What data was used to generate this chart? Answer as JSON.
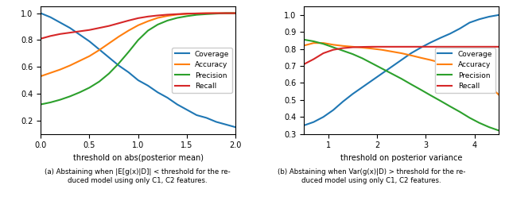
{
  "left": {
    "xlabel": "threshold on abs(posterior mean)",
    "xlim": [
      0.0,
      2.0
    ],
    "xticks": [
      0.0,
      0.5,
      1.0,
      1.5,
      2.0
    ],
    "ylim": [
      0.1,
      1.05
    ],
    "coverage": {
      "x": [
        0.0,
        0.1,
        0.2,
        0.3,
        0.4,
        0.5,
        0.6,
        0.7,
        0.8,
        0.9,
        1.0,
        1.1,
        1.2,
        1.3,
        1.4,
        1.5,
        1.6,
        1.7,
        1.8,
        1.9,
        2.0
      ],
      "y": [
        1.0,
        0.97,
        0.93,
        0.89,
        0.84,
        0.79,
        0.73,
        0.67,
        0.61,
        0.56,
        0.5,
        0.46,
        0.41,
        0.37,
        0.32,
        0.28,
        0.24,
        0.22,
        0.19,
        0.17,
        0.15
      ],
      "color": "#1f77b4",
      "label": "Coverage"
    },
    "accuracy": {
      "x": [
        0.0,
        0.1,
        0.2,
        0.3,
        0.4,
        0.5,
        0.6,
        0.7,
        0.8,
        0.9,
        1.0,
        1.1,
        1.2,
        1.3,
        1.4,
        1.5,
        1.6,
        1.7,
        1.8,
        1.9,
        2.0
      ],
      "y": [
        0.53,
        0.555,
        0.58,
        0.61,
        0.645,
        0.68,
        0.725,
        0.775,
        0.825,
        0.87,
        0.91,
        0.94,
        0.965,
        0.98,
        0.99,
        0.995,
        0.998,
        1.0,
        1.0,
        1.0,
        1.0
      ],
      "color": "#ff7f0e",
      "label": "Accuracy"
    },
    "precision": {
      "x": [
        0.0,
        0.1,
        0.2,
        0.3,
        0.4,
        0.5,
        0.6,
        0.7,
        0.8,
        0.9,
        1.0,
        1.1,
        1.2,
        1.3,
        1.4,
        1.5,
        1.6,
        1.7,
        1.8,
        1.9,
        2.0
      ],
      "y": [
        0.32,
        0.335,
        0.355,
        0.38,
        0.41,
        0.445,
        0.49,
        0.55,
        0.625,
        0.71,
        0.8,
        0.87,
        0.915,
        0.945,
        0.965,
        0.978,
        0.988,
        0.993,
        0.997,
        1.0,
        1.0
      ],
      "color": "#2ca02c",
      "label": "Precision"
    },
    "recall": {
      "x": [
        0.0,
        0.1,
        0.2,
        0.3,
        0.4,
        0.5,
        0.6,
        0.7,
        0.8,
        0.9,
        1.0,
        1.1,
        1.2,
        1.3,
        1.4,
        1.5,
        1.6,
        1.7,
        1.8,
        1.9,
        2.0
      ],
      "y": [
        0.81,
        0.83,
        0.845,
        0.855,
        0.865,
        0.875,
        0.89,
        0.905,
        0.925,
        0.945,
        0.963,
        0.975,
        0.983,
        0.989,
        0.993,
        0.997,
        0.998,
        0.999,
        1.0,
        1.0,
        1.0
      ],
      "color": "#d62728",
      "label": "Recall"
    }
  },
  "right": {
    "xlabel": "threshold on posterior variance",
    "xlim": [
      0.5,
      4.5
    ],
    "xticks": [
      1,
      2,
      3,
      4
    ],
    "ylim": [
      0.3,
      1.05
    ],
    "coverage": {
      "x": [
        0.5,
        0.7,
        0.9,
        1.1,
        1.3,
        1.5,
        1.7,
        1.9,
        2.1,
        2.3,
        2.5,
        2.7,
        2.9,
        3.1,
        3.3,
        3.5,
        3.7,
        3.9,
        4.1,
        4.3,
        4.5
      ],
      "y": [
        0.35,
        0.37,
        0.4,
        0.44,
        0.49,
        0.535,
        0.575,
        0.615,
        0.655,
        0.695,
        0.735,
        0.775,
        0.808,
        0.838,
        0.865,
        0.89,
        0.92,
        0.955,
        0.975,
        0.99,
        1.0
      ],
      "color": "#1f77b4",
      "label": "Coverage"
    },
    "accuracy": {
      "x": [
        0.5,
        0.7,
        0.9,
        1.1,
        1.3,
        1.5,
        1.7,
        1.9,
        2.1,
        2.3,
        2.5,
        2.7,
        2.9,
        3.1,
        3.3,
        3.5,
        3.7,
        3.9,
        4.1,
        4.3,
        4.5
      ],
      "y": [
        0.82,
        0.835,
        0.835,
        0.825,
        0.818,
        0.813,
        0.808,
        0.802,
        0.795,
        0.785,
        0.775,
        0.762,
        0.748,
        0.735,
        0.72,
        0.705,
        0.685,
        0.665,
        0.64,
        0.585,
        0.53
      ],
      "color": "#ff7f0e",
      "label": "Accuracy"
    },
    "precision": {
      "x": [
        0.5,
        0.7,
        0.9,
        1.1,
        1.3,
        1.5,
        1.7,
        1.9,
        2.1,
        2.3,
        2.5,
        2.7,
        2.9,
        3.1,
        3.3,
        3.5,
        3.7,
        3.9,
        4.1,
        4.3,
        4.5
      ],
      "y": [
        0.855,
        0.845,
        0.83,
        0.81,
        0.79,
        0.77,
        0.745,
        0.715,
        0.685,
        0.655,
        0.625,
        0.592,
        0.56,
        0.527,
        0.495,
        0.462,
        0.43,
        0.395,
        0.365,
        0.34,
        0.32
      ],
      "color": "#2ca02c",
      "label": "Precision"
    },
    "recall": {
      "x": [
        0.5,
        0.7,
        0.9,
        1.1,
        1.3,
        1.5,
        1.7,
        1.9,
        2.1,
        2.3,
        2.5,
        2.7,
        2.9,
        3.1,
        3.3,
        3.5,
        3.7,
        3.9,
        4.1,
        4.3,
        4.5
      ],
      "y": [
        0.71,
        0.74,
        0.775,
        0.795,
        0.805,
        0.81,
        0.812,
        0.813,
        0.813,
        0.813,
        0.813,
        0.813,
        0.813,
        0.813,
        0.813,
        0.813,
        0.813,
        0.813,
        0.813,
        0.813,
        0.813
      ],
      "color": "#d62728",
      "label": "Recall"
    }
  },
  "caption_left": "(a) Abstaining when |E[g(x)|D]| < threshold for the re-\nduced model using only C1, C2 features.",
  "caption_right": "(b) Abstaining when Var(g(x)|D) > threshold for the re-\nduced model using only C1, C2 features.",
  "fig_width": 6.4,
  "fig_height": 2.72,
  "dpi": 100
}
